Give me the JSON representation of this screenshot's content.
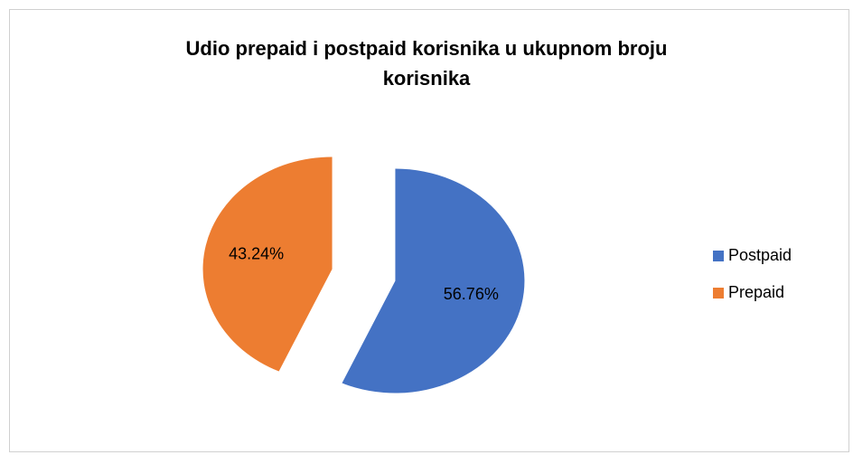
{
  "chart_data": {
    "type": "pie",
    "title": "Udio prepaid i postpaid korisnika u ukupnom broju korisnika",
    "categories": [
      "Postpaid",
      "Prepaid"
    ],
    "values": [
      56.76,
      43.24
    ],
    "value_labels": [
      "56.76%",
      "43.24%"
    ],
    "colors": [
      "#4472c4",
      "#ed7d31"
    ],
    "exploded": true,
    "legend": "right"
  }
}
